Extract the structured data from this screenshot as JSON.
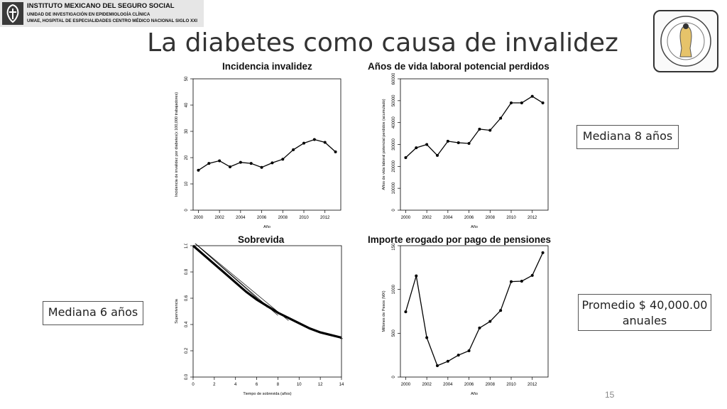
{
  "header": {
    "institution": "INSTITUTO MEXICANO DEL SEGURO SOCIAL",
    "unit": "UNIDAD DE INVESTIGACIÓN EN EPIDEMIOLOGÍA CLÍNICA",
    "hospital": "UMAE, HOSPITAL DE ESPECIALIDADES CENTRO MÉDICO NACIONAL SIGLO XXI"
  },
  "slide": {
    "title": "La diabetes como causa de invalidez",
    "page_number": "15"
  },
  "academy_seal": {
    "text": "ACADEMIA NACIONAL DE MEDICINA · MÉXICO"
  },
  "callouts": {
    "top_right": "Mediana 8 años",
    "bottom_left": "Mediana 6 años",
    "bottom_right_line1": "Promedio $ 40,000.00",
    "bottom_right_line2": "anuales"
  },
  "chart_data": [
    {
      "type": "line",
      "title": "Incidencia invalidez",
      "xlabel": "Año",
      "ylabel": "Incidencia de invalidez por diabetes(x 100,000 trabajadores)",
      "x": [
        2000,
        2001,
        2002,
        2003,
        2004,
        2005,
        2006,
        2007,
        2008,
        2009,
        2010,
        2011,
        2012,
        2013
      ],
      "values": [
        15.2,
        17.8,
        18.8,
        16.5,
        18.2,
        17.8,
        16.3,
        18.0,
        19.4,
        23.0,
        25.5,
        26.9,
        25.8,
        22.2
      ],
      "xlim": [
        1999.5,
        2013.5
      ],
      "ylim": [
        0,
        50
      ],
      "xticks": [
        "2000",
        "2002",
        "2004",
        "2006",
        "2008",
        "2010",
        "2012"
      ],
      "yticks": [
        "0",
        "10",
        "20",
        "30",
        "40",
        "50"
      ]
    },
    {
      "type": "line",
      "title": "Años de vida laboral potencial perdidos",
      "xlabel": "Año",
      "ylabel": "Años de vida laboral potencial perdidos (acumulado)",
      "x": [
        2000,
        2001,
        2002,
        2003,
        2004,
        2005,
        2006,
        2007,
        2008,
        2009,
        2010,
        2011,
        2012,
        2013
      ],
      "values": [
        24000,
        28500,
        30000,
        25000,
        31500,
        30800,
        30500,
        37000,
        36500,
        42000,
        49000,
        49000,
        52000,
        49000
      ],
      "xlim": [
        1999.5,
        2013.5
      ],
      "ylim": [
        0,
        60000
      ],
      "xticks": [
        "2000",
        "2002",
        "2004",
        "2006",
        "2008",
        "2010",
        "2012"
      ],
      "yticks": [
        "0",
        "10000",
        "20000",
        "30000",
        "40000",
        "50000",
        "60000"
      ]
    },
    {
      "type": "line",
      "title": "Sobrevida",
      "xlabel": "Tiempo de sobrevida (años)",
      "ylabel": "Supervivencia",
      "series": [
        {
          "x": [
            0,
            1,
            2,
            3,
            4,
            5,
            6,
            7,
            8,
            9,
            10,
            11,
            12,
            13,
            14
          ],
          "values": [
            1.0,
            0.93,
            0.86,
            0.79,
            0.72,
            0.65,
            0.59,
            0.54,
            0.49,
            0.45,
            0.41,
            0.37,
            0.34,
            0.32,
            0.3
          ]
        },
        {
          "x": [
            0,
            9
          ],
          "values": [
            1.03,
            0.43
          ]
        },
        {
          "x": [
            0,
            8
          ],
          "values": [
            1.03,
            0.47
          ]
        },
        {
          "x": [
            0,
            7
          ],
          "values": [
            1.03,
            0.53
          ]
        }
      ],
      "xlim": [
        0,
        14
      ],
      "ylim": [
        0,
        1.0
      ],
      "xticks": [
        "0",
        "2",
        "4",
        "6",
        "8",
        "10",
        "12",
        "14"
      ],
      "yticks": [
        "0.0",
        "0.2",
        "0.4",
        "0.6",
        "0.8",
        "1.0"
      ]
    },
    {
      "type": "line",
      "title": "Importe erogado por pago de pensiones",
      "xlabel": "Año",
      "ylabel": "Millones de Pesos (MX)",
      "x": [
        2000,
        2001,
        2002,
        2003,
        2004,
        2005,
        2006,
        2007,
        2008,
        2009,
        2010,
        2011,
        2012,
        2013
      ],
      "values": [
        745,
        1155,
        450,
        130,
        180,
        250,
        300,
        560,
        635,
        760,
        1090,
        1095,
        1160,
        1420
      ],
      "xlim": [
        1999.5,
        2013.5
      ],
      "ylim": [
        0,
        1500
      ],
      "xticks": [
        "2000",
        "2002",
        "2004",
        "2006",
        "2008",
        "2010",
        "2012"
      ],
      "yticks": [
        "0",
        "500",
        "1000",
        "1500"
      ]
    }
  ]
}
